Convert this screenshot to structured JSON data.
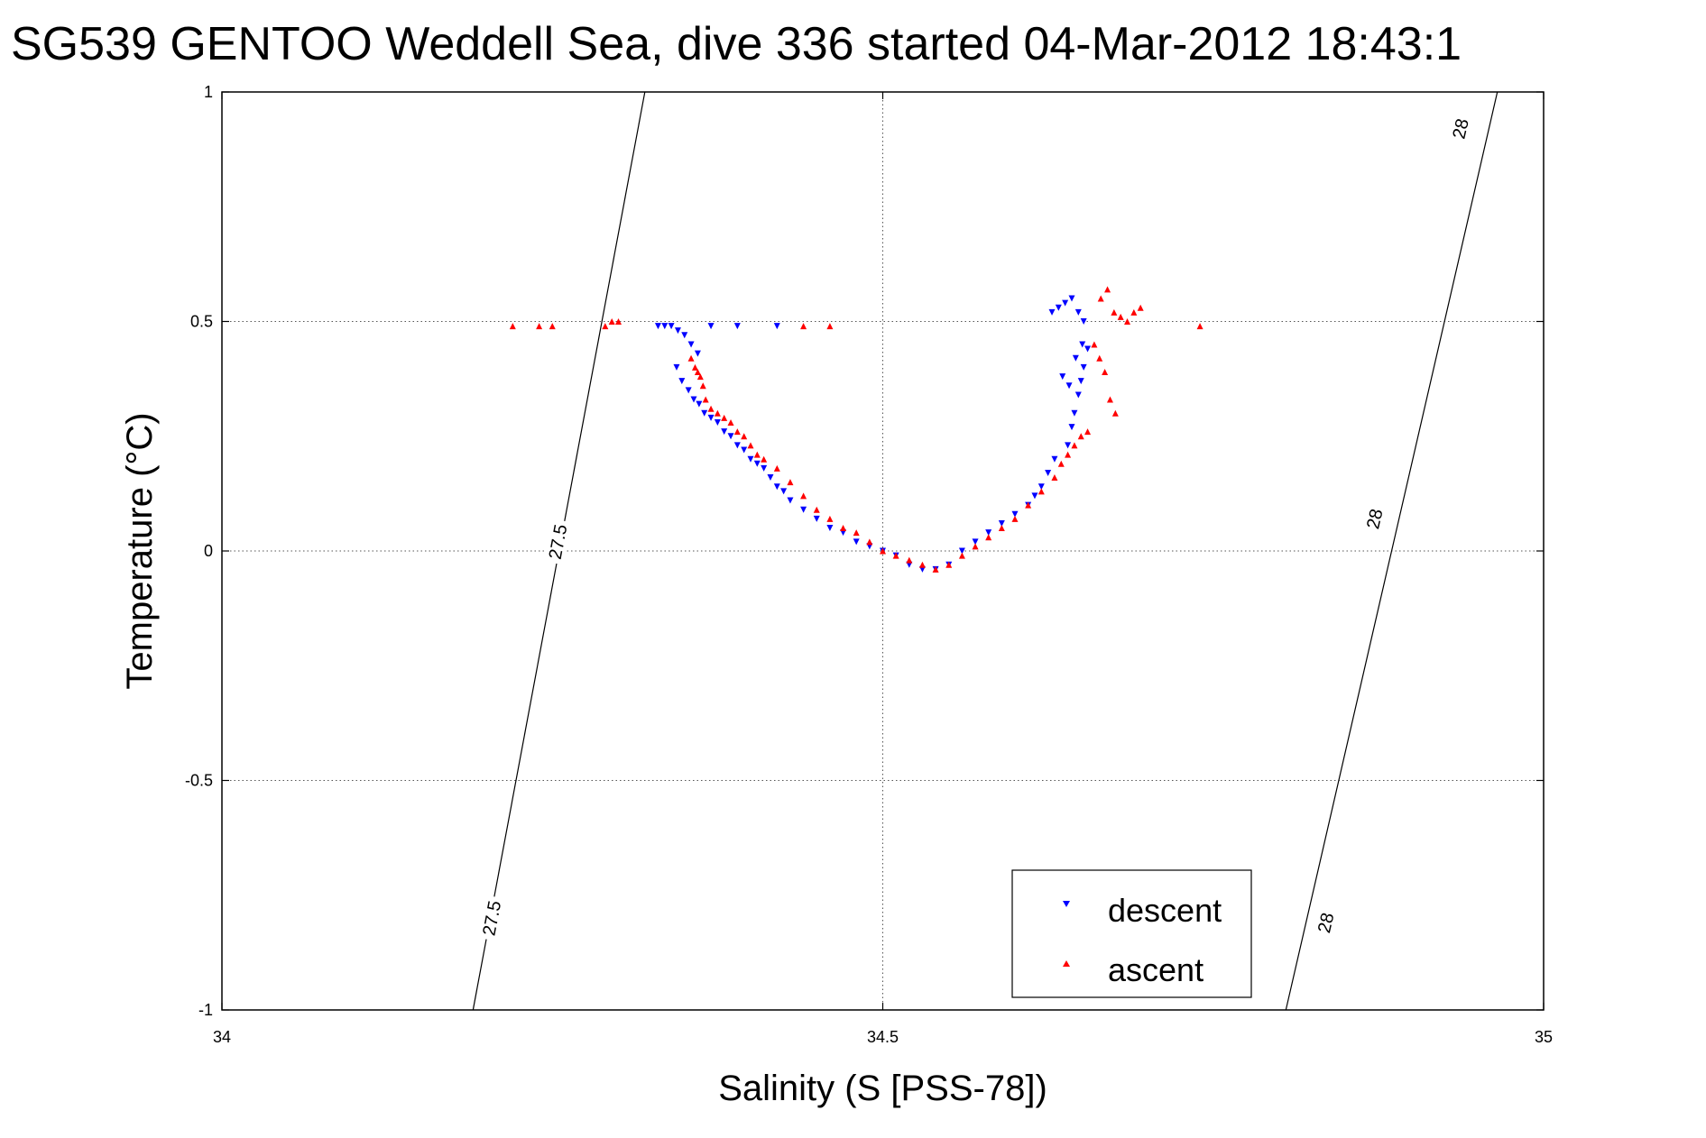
{
  "chart_data": {
    "type": "scatter",
    "title": "SG539 GENTOO Weddell Sea, dive 336 started 04-Mar-2012 18:43:1",
    "xlabel": "Salinity (S [PSS-78])",
    "ylabel": "Temperature (°C)",
    "xlim": [
      34,
      35
    ],
    "ylim": [
      -1,
      1
    ],
    "x_ticks": [
      34,
      34.5,
      35
    ],
    "x_tick_labels": [
      "34",
      "34.5",
      "35"
    ],
    "y_ticks": [
      -1,
      -0.5,
      0,
      0.5,
      1
    ],
    "y_tick_labels": [
      "-1",
      "-0.5",
      "0",
      "0.5",
      "1"
    ],
    "grid": true,
    "legend_position": "bottom-right",
    "density_contours": [
      {
        "label": "27.5",
        "x": [
          34.19,
          34.32
        ],
        "y": [
          -1,
          1
        ],
        "label_points": [
          {
            "x": 34.254,
            "y": 0.02
          },
          {
            "x": 34.204,
            "y": -0.8
          }
        ]
      },
      {
        "label": "28",
        "x": [
          34.805,
          34.965
        ],
        "y": [
          -1,
          1
        ],
        "label_points": [
          {
            "x": 34.872,
            "y": 0.07
          },
          {
            "x": 34.835,
            "y": -0.81
          },
          {
            "x": 34.937,
            "y": 0.92
          }
        ]
      }
    ],
    "series": [
      {
        "name": "descent",
        "color": "#0000ff",
        "marker": "triangle-down",
        "x": [
          34.33,
          34.335,
          34.34,
          34.345,
          34.35,
          34.355,
          34.36,
          34.37,
          34.39,
          34.42,
          34.344,
          34.348,
          34.353,
          34.357,
          34.361,
          34.365,
          34.37,
          34.375,
          34.38,
          34.385,
          34.39,
          34.395,
          34.4,
          34.405,
          34.41,
          34.415,
          34.42,
          34.425,
          34.43,
          34.44,
          34.45,
          34.46,
          34.47,
          34.48,
          34.49,
          34.5,
          34.51,
          34.52,
          34.53,
          34.54,
          34.55,
          34.56,
          34.57,
          34.58,
          34.59,
          34.6,
          34.61,
          34.615,
          34.62,
          34.625,
          34.63,
          34.64,
          34.643,
          34.645,
          34.648,
          34.65,
          34.652,
          34.655,
          34.628,
          34.633,
          34.638,
          34.643,
          34.648,
          34.652,
          34.636,
          34.641,
          34.646,
          34.651
        ],
        "y": [
          0.49,
          0.49,
          0.49,
          0.48,
          0.47,
          0.45,
          0.43,
          0.49,
          0.49,
          0.49,
          0.4,
          0.37,
          0.35,
          0.33,
          0.32,
          0.3,
          0.29,
          0.28,
          0.26,
          0.25,
          0.23,
          0.22,
          0.2,
          0.19,
          0.18,
          0.16,
          0.14,
          0.13,
          0.11,
          0.09,
          0.07,
          0.05,
          0.04,
          0.02,
          0.01,
          0.0,
          -0.01,
          -0.03,
          -0.04,
          -0.04,
          -0.03,
          0.0,
          0.02,
          0.04,
          0.06,
          0.08,
          0.1,
          0.12,
          0.14,
          0.17,
          0.2,
          0.23,
          0.27,
          0.3,
          0.34,
          0.37,
          0.4,
          0.44,
          0.52,
          0.53,
          0.54,
          0.55,
          0.52,
          0.5,
          0.38,
          0.36,
          0.42,
          0.45
        ]
      },
      {
        "name": "ascent",
        "color": "#ff0000",
        "marker": "triangle-up",
        "x": [
          34.22,
          34.24,
          34.25,
          34.29,
          34.295,
          34.3,
          34.44,
          34.46,
          34.74,
          34.355,
          34.358,
          34.36,
          34.362,
          34.364,
          34.366,
          34.37,
          34.375,
          34.38,
          34.385,
          34.39,
          34.395,
          34.4,
          34.405,
          34.41,
          34.42,
          34.43,
          34.44,
          34.45,
          34.46,
          34.47,
          34.48,
          34.49,
          34.5,
          34.51,
          34.52,
          34.53,
          34.54,
          34.55,
          34.56,
          34.57,
          34.58,
          34.59,
          34.6,
          34.61,
          34.62,
          34.63,
          34.635,
          34.64,
          34.645,
          34.65,
          34.655,
          34.665,
          34.67,
          34.675,
          34.68,
          34.685,
          34.69,
          34.695,
          34.66,
          34.664,
          34.668,
          34.672,
          34.676
        ],
        "y": [
          0.49,
          0.49,
          0.49,
          0.49,
          0.5,
          0.5,
          0.49,
          0.49,
          0.49,
          0.42,
          0.4,
          0.39,
          0.38,
          0.36,
          0.33,
          0.31,
          0.3,
          0.29,
          0.28,
          0.26,
          0.25,
          0.23,
          0.21,
          0.2,
          0.18,
          0.15,
          0.12,
          0.09,
          0.07,
          0.05,
          0.04,
          0.02,
          0.0,
          -0.01,
          -0.02,
          -0.03,
          -0.04,
          -0.03,
          -0.01,
          0.01,
          0.03,
          0.05,
          0.07,
          0.1,
          0.13,
          0.16,
          0.19,
          0.21,
          0.23,
          0.25,
          0.26,
          0.55,
          0.57,
          0.52,
          0.51,
          0.5,
          0.52,
          0.53,
          0.45,
          0.42,
          0.39,
          0.33,
          0.3
        ]
      }
    ]
  }
}
